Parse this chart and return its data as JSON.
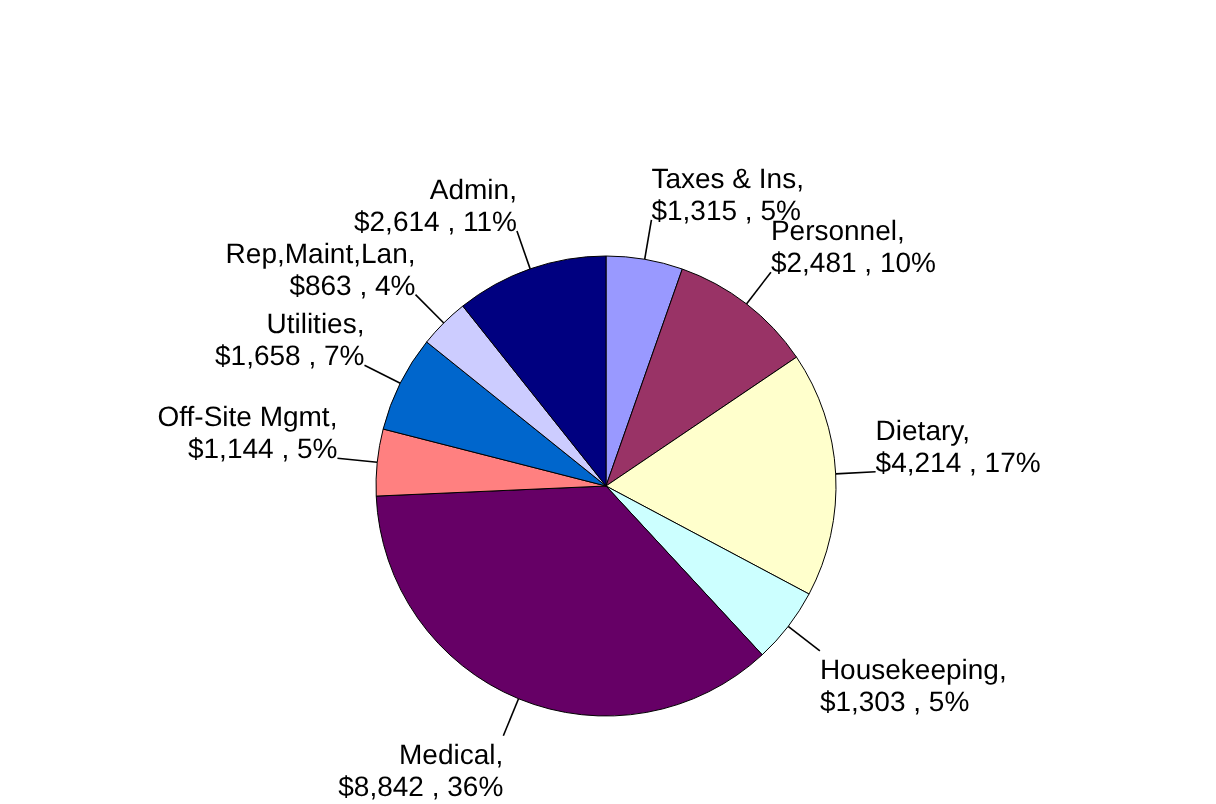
{
  "chart_data": {
    "type": "pie",
    "categories": [
      "Taxes & Ins",
      "Personnel",
      "Dietary",
      "Housekeeping",
      "Medical",
      "Off-Site Mgmt",
      "Utilities",
      "Rep,Maint,Lan",
      "Admin"
    ],
    "values": [
      1315,
      2481,
      4214,
      1303,
      8842,
      1144,
      1658,
      863,
      2614
    ],
    "value_labels": [
      ", $1,315 , 5%",
      ", $2,481 , 10%",
      ", $4,214 , 17%",
      ", $1,303 , 5%",
      ", $8,842 , 36%",
      ", $1,144 , 5%",
      ", $1,658 , 7%",
      ", $863 , 4%",
      ", $2,614 , 11%"
    ],
    "colors": [
      "#9999ff",
      "#993366",
      "#ffffcc",
      "#ccffff",
      "#660066",
      "#ff8080",
      "#0066cc",
      "#ccccff",
      "#000080"
    ],
    "legend": false
  }
}
